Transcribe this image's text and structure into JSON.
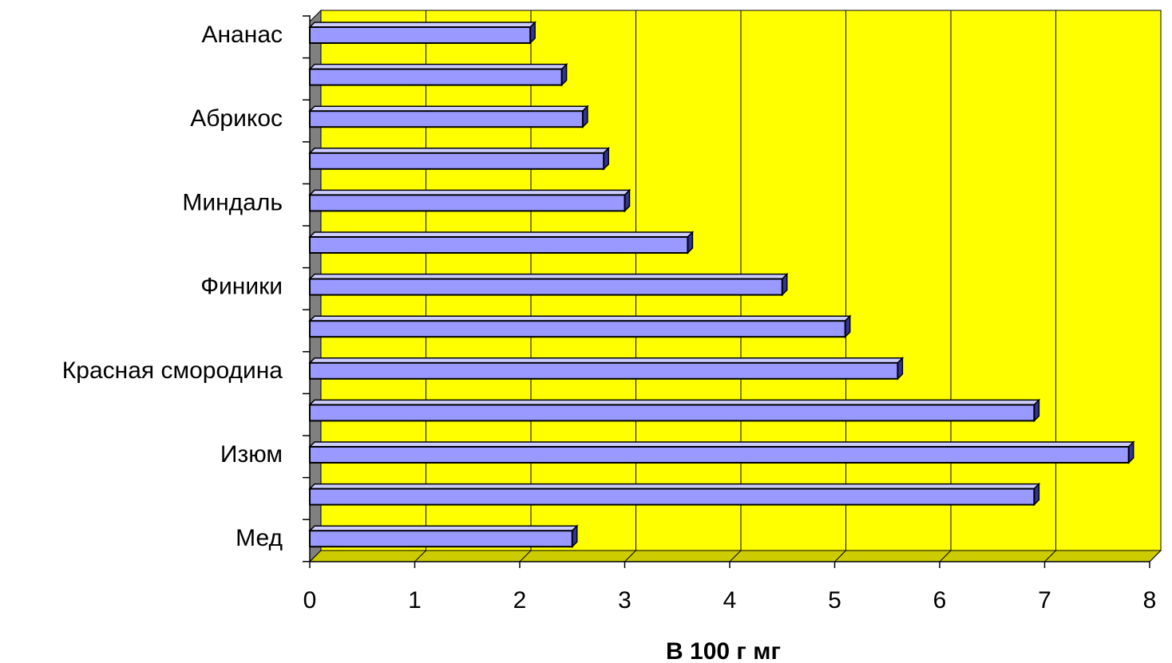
{
  "chart_data": {
    "type": "bar",
    "orientation": "horizontal",
    "categories": [
      "Ананас",
      "",
      "Абрикос",
      "",
      "Миндаль",
      "",
      "Финики",
      "",
      "Красная смородина",
      "",
      "Изюм",
      "",
      "Мед"
    ],
    "values": [
      2.1,
      2.4,
      2.6,
      2.8,
      3.0,
      3.6,
      4.5,
      5.1,
      5.6,
      6.9,
      7.8,
      6.9,
      2.5
    ],
    "xlabel": "В 100 г мг",
    "ylabel": "",
    "xlim": [
      0,
      8
    ],
    "x_ticks": [
      "0",
      "1",
      "2",
      "3",
      "4",
      "5",
      "6",
      "7",
      "8"
    ],
    "grid": "vertical",
    "legend": "none",
    "colors": {
      "plot_background": "#ffff00",
      "bar_front": "#9999ff",
      "bar_top": "#ccccff",
      "bar_side": "#333399",
      "wall_side": "#808080",
      "floor": "#cccc00",
      "gridline": "#000000"
    }
  }
}
